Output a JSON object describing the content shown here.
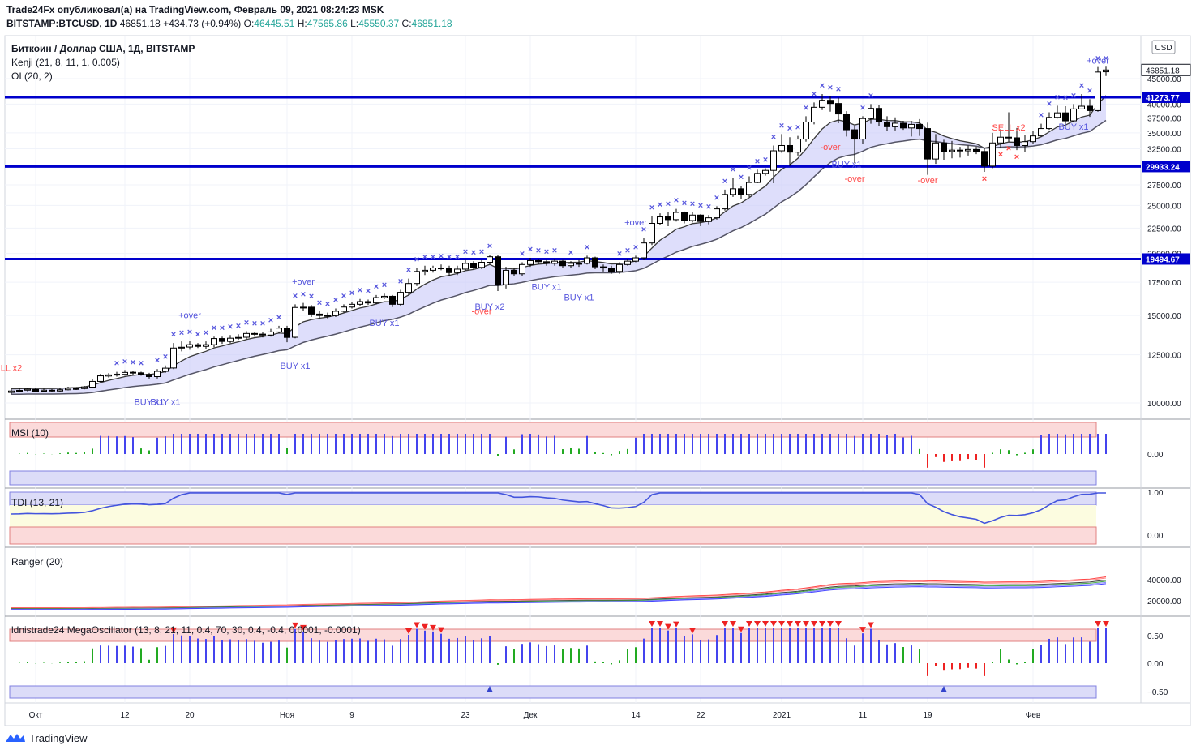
{
  "header": {
    "publisher_line": "Trade24Fx опубликовал(а) на TradingView.com, Февраль 09, 2021 08:24:23 MSK",
    "symbol": "BITSTAMP:BTCUSD, 1D",
    "price": "46851.18",
    "change": "+434.73 (+0.94%)",
    "o_label": "O:",
    "o_value": "46445.51",
    "h_label": "H:",
    "h_value": "47565.86",
    "l_label": "L:",
    "l_value": "45550.37",
    "c_label": "C:",
    "c_value": "46851.18"
  },
  "legend": {
    "title": "Биткоин / Доллар США, 1Д, BITSTAMP",
    "ind1": "Kenji (21, 8, 11, 1, 0.005)",
    "ind2": "OI (20, 2)"
  },
  "currency_label": "USD",
  "colors": {
    "up_candle": "#ffffff",
    "down_candle": "#000000",
    "hline": "#0000cc",
    "blue_marker": "#5555dd",
    "red_marker": "#ff4444",
    "histo_blue": "#4444ee",
    "histo_green": "#22aa22",
    "histo_red": "#ee2222"
  },
  "chart_data": [
    {
      "type": "candlestick",
      "panel": "price",
      "title": "Биткоин / Доллар США, 1Д, BITSTAMP",
      "ylim": [
        8000,
        48500
      ],
      "yticks": [
        10000,
        12500,
        15000,
        17500,
        20000,
        22500,
        25000,
        27500,
        30000,
        32500,
        35000,
        37500,
        40000,
        45000
      ],
      "hlines": [
        41273.77,
        29933.24,
        19494.67
      ],
      "last_price": 46851.18,
      "x_labels": [
        {
          "label": "Окт",
          "index": 3
        },
        {
          "label": "12",
          "index": 14
        },
        {
          "label": "20",
          "index": 22
        },
        {
          "label": "Ноя",
          "index": 34
        },
        {
          "label": "9",
          "index": 42
        },
        {
          "label": "23",
          "index": 56
        },
        {
          "label": "Дек",
          "index": 64
        },
        {
          "label": "14",
          "index": 77
        },
        {
          "label": "22",
          "index": 85
        },
        {
          "label": "2021",
          "index": 95
        },
        {
          "label": "11",
          "index": 105
        },
        {
          "label": "19",
          "index": 113
        },
        {
          "label": "Фев",
          "index": 126
        }
      ],
      "closes": [
        10570,
        10600,
        10660,
        10560,
        10610,
        10570,
        10630,
        10700,
        10680,
        10770,
        11050,
        11340,
        11390,
        11430,
        11520,
        11500,
        11420,
        11300,
        11580,
        11750,
        12900,
        12950,
        13100,
        13000,
        13100,
        13480,
        13300,
        13500,
        13550,
        13800,
        13770,
        13700,
        13900,
        14150,
        13550,
        15570,
        15590,
        15100,
        15000,
        15000,
        15300,
        15600,
        15800,
        16000,
        15900,
        16300,
        16400,
        15800,
        16700,
        17400,
        18400,
        18500,
        18700,
        18700,
        18300,
        18600,
        19100,
        18750,
        19200,
        19700,
        17300,
        18500,
        18200,
        19000,
        19350,
        19250,
        19100,
        19300,
        18900,
        19100,
        19100,
        19600,
        18800,
        18700,
        18400,
        19000,
        19300,
        19600,
        21000,
        23000,
        23700,
        23400,
        24200,
        23300,
        23900,
        23200,
        23600,
        24600,
        26300,
        27000,
        26300,
        27800,
        29000,
        29400,
        32200,
        33000,
        32000,
        34000,
        36800,
        39400,
        40700,
        40100,
        38200,
        35500,
        34000,
        37400,
        39200,
        36800,
        36000,
        36600,
        35800,
        36400,
        35700,
        31000,
        33400,
        32100,
        32300,
        32200,
        32400,
        32100,
        30000,
        33400,
        34300,
        34200,
        33000,
        33600,
        34500,
        35700,
        37600,
        38400,
        37000,
        39100,
        39600,
        38800,
        46400,
        46850
      ],
      "opens": [
        10500,
        10560,
        10610,
        10640,
        10560,
        10610,
        10570,
        10630,
        10690,
        10690,
        10760,
        11050,
        11330,
        11380,
        11420,
        11530,
        11500,
        11420,
        11300,
        11580,
        11760,
        12900,
        12960,
        13100,
        13000,
        13100,
        13480,
        13300,
        13500,
        13560,
        13800,
        13760,
        13700,
        13900,
        14150,
        13560,
        15580,
        15590,
        15100,
        15000,
        15000,
        15300,
        15600,
        15800,
        16000,
        15900,
        16300,
        16400,
        15800,
        16700,
        17400,
        18400,
        18500,
        18700,
        18700,
        18300,
        18600,
        19100,
        18750,
        19200,
        19700,
        17300,
        18500,
        18200,
        19000,
        19350,
        19250,
        19100,
        19300,
        18900,
        19100,
        19100,
        19600,
        18800,
        18700,
        18400,
        19000,
        19300,
        19600,
        21000,
        23000,
        23700,
        23400,
        24200,
        23300,
        23900,
        23200,
        23600,
        24600,
        26300,
        27000,
        26300,
        27800,
        29000,
        29400,
        32200,
        33000,
        32000,
        34000,
        36800,
        39400,
        40700,
        40100,
        38200,
        35500,
        34000,
        37400,
        39200,
        36800,
        36000,
        36600,
        35800,
        36400,
        35700,
        31000,
        33400,
        32100,
        32300,
        32200,
        32400,
        32100,
        30000,
        33400,
        34300,
        34200,
        33000,
        33600,
        34500,
        35700,
        37600,
        38400,
        37000,
        39100,
        39600,
        38800,
        46450
      ],
      "highs": [
        10650,
        10700,
        10720,
        10700,
        10680,
        10660,
        10720,
        10780,
        10760,
        10820,
        11150,
        11450,
        11480,
        11550,
        11650,
        11600,
        11560,
        11500,
        11700,
        11900,
        13200,
        13300,
        13350,
        13200,
        13300,
        13600,
        13600,
        13700,
        13750,
        13950,
        13900,
        13900,
        14100,
        14300,
        14300,
        15800,
        15900,
        15750,
        15300,
        15200,
        15500,
        15800,
        16000,
        16200,
        16150,
        16500,
        16600,
        16500,
        16900,
        17800,
        18700,
        18900,
        18900,
        19000,
        18900,
        18900,
        19400,
        19300,
        19400,
        19900,
        19900,
        18800,
        18700,
        19200,
        19600,
        19500,
        19400,
        19500,
        19400,
        19300,
        19400,
        19800,
        19700,
        19000,
        18900,
        19200,
        19500,
        19800,
        21500,
        23800,
        24100,
        24200,
        24600,
        24300,
        24200,
        24000,
        23900,
        24900,
        26900,
        28400,
        27400,
        28600,
        29500,
        29700,
        33000,
        34800,
        34300,
        34500,
        37800,
        40300,
        41900,
        41500,
        41200,
        38700,
        36200,
        37800,
        40000,
        39800,
        37800,
        37600,
        37000,
        37000,
        37300,
        36700,
        34800,
        33900,
        33700,
        32800,
        33000,
        32800,
        32600,
        35000,
        35600,
        38500,
        35800,
        34600,
        35300,
        36500,
        38500,
        39700,
        39600,
        40000,
        41900,
        40900,
        47500,
        47560
      ],
      "lows": [
        10430,
        10500,
        10550,
        10520,
        10510,
        10520,
        10540,
        10600,
        10620,
        10650,
        10720,
        10980,
        11250,
        11300,
        11350,
        11400,
        11350,
        11200,
        11200,
        11500,
        11700,
        12700,
        12800,
        12900,
        12850,
        12950,
        13150,
        13200,
        13400,
        13450,
        13600,
        13550,
        13600,
        13800,
        13250,
        13500,
        15300,
        14900,
        14800,
        14800,
        14900,
        15200,
        15500,
        15700,
        15750,
        15800,
        16200,
        15600,
        15700,
        16500,
        17200,
        18100,
        18300,
        18500,
        18000,
        18100,
        18500,
        18600,
        18600,
        19000,
        16800,
        17000,
        18000,
        18000,
        18800,
        19000,
        18900,
        18900,
        18700,
        18700,
        18800,
        19000,
        18600,
        18400,
        18200,
        18200,
        18900,
        19200,
        19400,
        20800,
        22800,
        22700,
        23200,
        23000,
        23100,
        22700,
        22900,
        23400,
        24400,
        26000,
        25700,
        26000,
        27700,
        28700,
        27700,
        31900,
        30000,
        31500,
        33600,
        36400,
        38900,
        38600,
        36600,
        34400,
        30400,
        33300,
        36500,
        36100,
        35300,
        35400,
        35500,
        34400,
        34500,
        28800,
        30300,
        30900,
        31100,
        31200,
        31500,
        31700,
        29200,
        29700,
        32700,
        33600,
        32300,
        32000,
        33300,
        34600,
        35500,
        37400,
        36400,
        36900,
        39000,
        37700,
        38600,
        45550
      ],
      "series": [
        {
          "name": "Kenji (21, 8, 11, 1, 0.005)",
          "type": "line"
        },
        {
          "name": "OI (20, 2)",
          "type": "band"
        }
      ],
      "annotations": [
        {
          "text": "LL x2",
          "index": 0,
          "price": 11600,
          "color": "red"
        },
        {
          "text": "BUY x1",
          "index": 17,
          "price": 9900,
          "color": "blue"
        },
        {
          "text": "BUY x1",
          "index": 19,
          "price": 9900,
          "color": "blue"
        },
        {
          "text": "+over",
          "index": 22,
          "price": 14800,
          "color": "blue"
        },
        {
          "text": "BUY x1",
          "index": 35,
          "price": 11700,
          "color": "blue"
        },
        {
          "text": "+over",
          "index": 36,
          "price": 17300,
          "color": "blue"
        },
        {
          "text": "BUY x1",
          "index": 46,
          "price": 14300,
          "color": "blue"
        },
        {
          "text": "-over",
          "index": 58,
          "price": 15100,
          "color": "red"
        },
        {
          "text": "BUY x2",
          "index": 59,
          "price": 15400,
          "color": "blue"
        },
        {
          "text": "BUY x1",
          "index": 66,
          "price": 16900,
          "color": "blue"
        },
        {
          "text": "BUY x1",
          "index": 70,
          "price": 16100,
          "color": "blue"
        },
        {
          "text": "+over",
          "index": 77,
          "price": 22800,
          "color": "blue"
        },
        {
          "text": "-over",
          "index": 101,
          "price": 32300,
          "color": "red"
        },
        {
          "text": "BUY x1",
          "index": 103,
          "price": 29800,
          "color": "blue"
        },
        {
          "text": "-over",
          "index": 104,
          "price": 27900,
          "color": "red"
        },
        {
          "text": "-over",
          "index": 113,
          "price": 27700,
          "color": "red"
        },
        {
          "text": "SELL x2",
          "index": 123,
          "price": 35400,
          "color": "red"
        },
        {
          "text": "BUY x1",
          "index": 131,
          "price": 35500,
          "color": "blue"
        },
        {
          "text": "+over",
          "index": 134,
          "price": 48200,
          "color": "blue"
        }
      ]
    },
    {
      "type": "bar",
      "panel": "msi",
      "title": "MSI (10)",
      "yticks": [
        0.0
      ],
      "ytick_labels": [
        "0.00"
      ]
    },
    {
      "type": "line",
      "panel": "tdi",
      "title": "TDI (13, 21)",
      "yticks": [
        1.0,
        0.0
      ],
      "ytick_labels": [
        "1.00",
        "0.00"
      ]
    },
    {
      "type": "line",
      "panel": "ranger",
      "title": "Ranger (20)",
      "yticks": [
        40000,
        20000
      ],
      "ytick_labels": [
        "40000.00",
        "20000.00"
      ]
    },
    {
      "type": "bar",
      "panel": "mega",
      "title": "ldnistrade24 MegaOscillator (13, 8, 21, 11, 0.4, 70, 30, 0.4, -0.4, 0.0001, -0.0001)",
      "yticks": [
        0.5,
        0.0,
        -0.5
      ],
      "ytick_labels": [
        "0.50",
        "0.00",
        "−0.50"
      ]
    }
  ],
  "footer": {
    "brand": "TradingView"
  }
}
